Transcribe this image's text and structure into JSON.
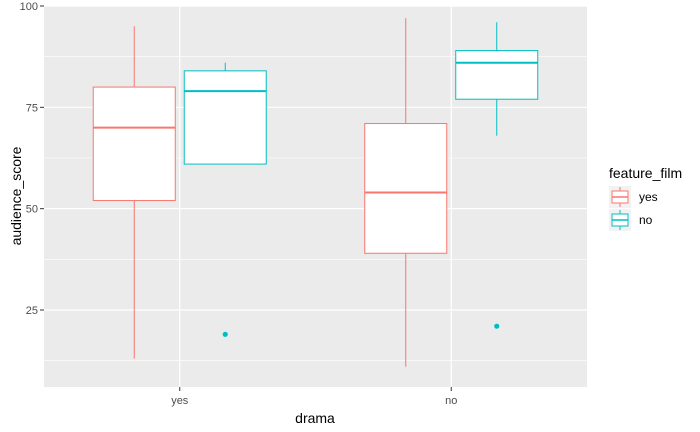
{
  "chart_data": {
    "type": "boxplot",
    "title": "",
    "xlabel": "drama",
    "ylabel": "audience_score",
    "categories": [
      "yes",
      "no"
    ],
    "ylim": [
      6,
      100
    ],
    "yticks": [
      25,
      50,
      75,
      100
    ],
    "grid": true,
    "legend": {
      "title": "feature_film",
      "position": "right",
      "entries": [
        "yes",
        "no"
      ]
    },
    "series": [
      {
        "name": "yes",
        "color": "#F8766D",
        "boxes": [
          {
            "category": "yes",
            "lower_whisker": 13,
            "q1": 52,
            "median": 70,
            "q3": 80,
            "upper_whisker": 95,
            "outliers": []
          },
          {
            "category": "no",
            "lower_whisker": 11,
            "q1": 39,
            "median": 54,
            "q3": 71,
            "upper_whisker": 97,
            "outliers": []
          }
        ]
      },
      {
        "name": "no",
        "color": "#00BFC4",
        "boxes": [
          {
            "category": "yes",
            "lower_whisker": 61,
            "q1": 61,
            "median": 79,
            "q3": 84,
            "upper_whisker": 86,
            "outliers": [
              19
            ]
          },
          {
            "category": "no",
            "lower_whisker": 68,
            "q1": 77,
            "median": 86,
            "q3": 89,
            "upper_whisker": 96,
            "outliers": [
              21
            ]
          }
        ]
      }
    ]
  }
}
